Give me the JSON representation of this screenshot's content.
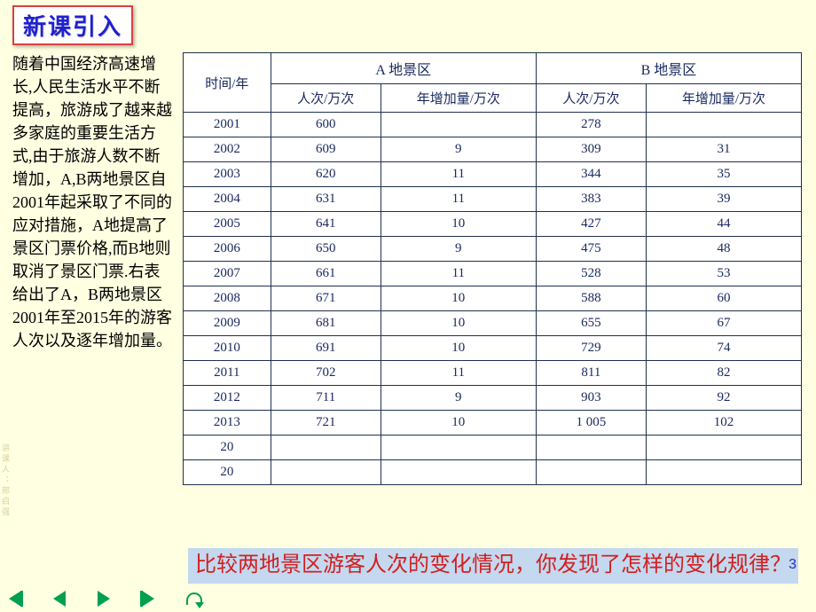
{
  "title_badge": "新课引入",
  "body_text": "随着中国经济高速增长,人民生活水平不断提高，旅游成了越来越多家庭的重要生活方式,由于旅游人数不断增加，A,B两地景区自2001年起采取了不同的应对措施，A地提高了景区门票价格,而B地则取消了景区门票.右表给出了A，B两地景区2001年至2015年的游客人次以及逐年增加量。",
  "question": "比较两地景区游客人次的变化情况，你发现了怎样的变化规律？",
  "side_note": "讲课人：邢启强",
  "page_number": "3",
  "table": {
    "header_time": "时间/年",
    "group_a": "A 地景区",
    "group_b": "B 地景区",
    "col_visits": "人次/万次",
    "col_inc": "年增加量/万次",
    "rows": [
      {
        "year": "2001",
        "a_v": "600",
        "a_i": "",
        "b_v": "278",
        "b_i": ""
      },
      {
        "year": "2002",
        "a_v": "609",
        "a_i": "9",
        "b_v": "309",
        "b_i": "31"
      },
      {
        "year": "2003",
        "a_v": "620",
        "a_i": "11",
        "b_v": "344",
        "b_i": "35"
      },
      {
        "year": "2004",
        "a_v": "631",
        "a_i": "11",
        "b_v": "383",
        "b_i": "39"
      },
      {
        "year": "2005",
        "a_v": "641",
        "a_i": "10",
        "b_v": "427",
        "b_i": "44"
      },
      {
        "year": "2006",
        "a_v": "650",
        "a_i": "9",
        "b_v": "475",
        "b_i": "48"
      },
      {
        "year": "2007",
        "a_v": "661",
        "a_i": "11",
        "b_v": "528",
        "b_i": "53"
      },
      {
        "year": "2008",
        "a_v": "671",
        "a_i": "10",
        "b_v": "588",
        "b_i": "60"
      },
      {
        "year": "2009",
        "a_v": "681",
        "a_i": "10",
        "b_v": "655",
        "b_i": "67"
      },
      {
        "year": "2010",
        "a_v": "691",
        "a_i": "10",
        "b_v": "729",
        "b_i": "74"
      },
      {
        "year": "2011",
        "a_v": "702",
        "a_i": "11",
        "b_v": "811",
        "b_i": "82"
      },
      {
        "year": "2012",
        "a_v": "711",
        "a_i": "9",
        "b_v": "903",
        "b_i": "92"
      },
      {
        "year": "2013",
        "a_v": "721",
        "a_i": "10",
        "b_v": "1 005",
        "b_i": "102"
      }
    ],
    "cut_years": [
      "20",
      "20"
    ]
  },
  "colors": {
    "page_bg": "#ffffe1",
    "badge_border": "#d94040",
    "badge_text": "#2020d0",
    "table_border": "#203050",
    "table_text": "#1a2a60",
    "question_bg": "#c4d8ef",
    "question_text": "#d02020",
    "nav_green": "#00a050",
    "pagenum_color": "#2030c0"
  }
}
